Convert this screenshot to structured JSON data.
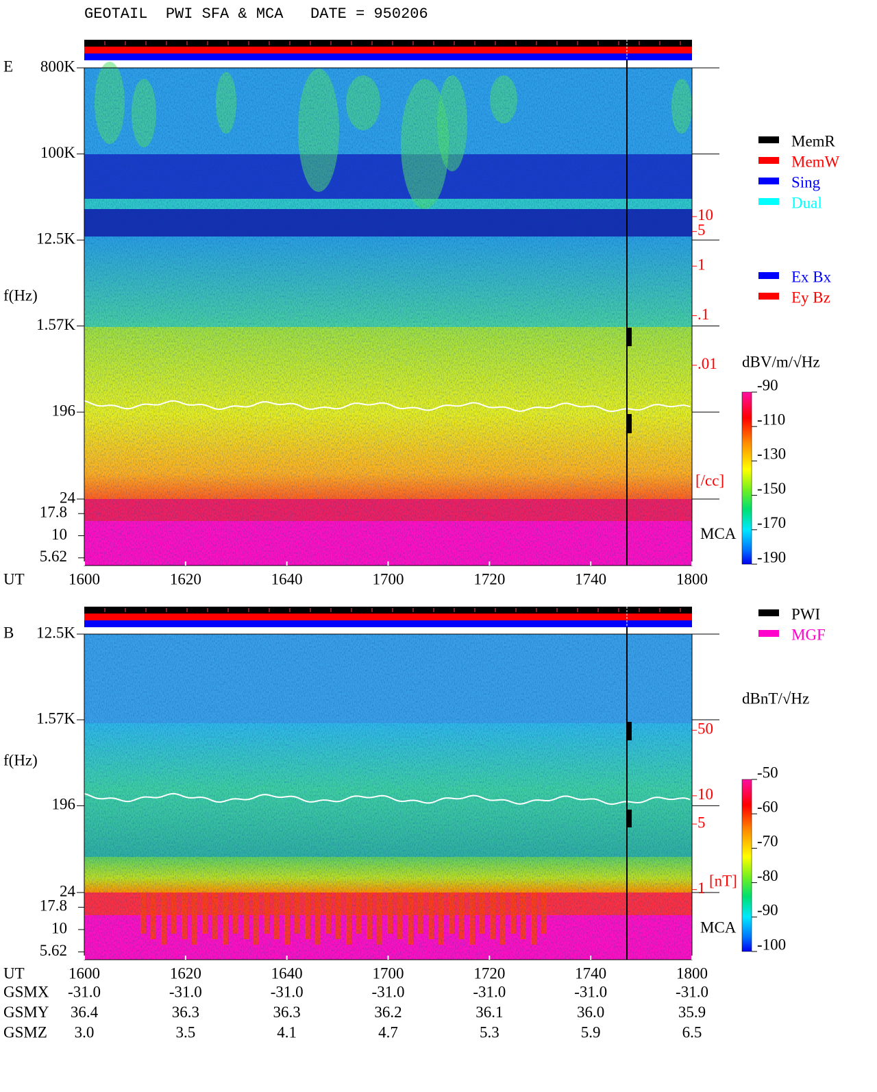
{
  "chart_data": [
    {
      "type": "spectrogram",
      "title": "GEOTAIL  PWI SFA & MCA   DATE = 950206",
      "panel": "E",
      "ylabel": "f(Hz)",
      "xlabel": "UT",
      "yscale": "log",
      "categories": [
        "1600",
        "1620",
        "1640",
        "1700",
        "1720",
        "1740",
        "1800"
      ],
      "ylim": [
        24,
        800000
      ],
      "yticks": [
        {
          "value": 800000,
          "label": "800K"
        },
        {
          "value": 100000,
          "label": "100K"
        },
        {
          "value": 12500,
          "label": "12.5K"
        },
        {
          "value": 1570,
          "label": "1.57K"
        },
        196,
        24
      ],
      "mca_label": "MCA",
      "mca_ylim": [
        4.6,
        26
      ],
      "mca_yticks": [
        17.8,
        10,
        5.62
      ],
      "y2label": "[/cc]",
      "y2color": "#ff0000",
      "y2lim": [
        2e-05,
        10000
      ],
      "y2ticks": [
        10,
        5,
        1,
        {
          "value": 0.1,
          "label": ".1"
        },
        {
          "value": 0.01,
          "label": ".01"
        }
      ],
      "colorbar": {
        "label": "dBV/m/√Hz",
        "lim": [
          -190,
          -90
        ],
        "ticks": [
          -90,
          -110,
          -130,
          -150,
          -170,
          -190
        ]
      },
      "status_legend": [
        {
          "name": "MemR",
          "color": "#000000"
        },
        {
          "name": "MemW",
          "color": "#ff0000"
        },
        {
          "name": "Sing",
          "color": "#0000ff"
        },
        {
          "name": "Dual",
          "color": "#00ffff"
        }
      ],
      "mode_legend": [
        {
          "name": "Ex Bx",
          "color": "#0000ff"
        },
        {
          "name": "Ey Bz",
          "color": "#ff0000"
        }
      ]
    },
    {
      "type": "spectrogram",
      "panel": "B",
      "ylabel": "f(Hz)",
      "xlabel": "UT",
      "yscale": "log",
      "categories": [
        "1600",
        "1620",
        "1640",
        "1700",
        "1720",
        "1740",
        "1800"
      ],
      "ylim": [
        24,
        12500
      ],
      "yticks": [
        {
          "value": 12500,
          "label": "12.5K"
        },
        {
          "value": 1570,
          "label": "1.57K"
        },
        196,
        24
      ],
      "mca_label": "MCA",
      "mca_ylim": [
        4.6,
        26
      ],
      "mca_yticks": [
        17.8,
        10,
        5.62
      ],
      "y2label": "[nT]",
      "y2color": "#ff0000",
      "y2lim": [
        0.93,
        530
      ],
      "y2ticks": [
        50,
        10,
        5,
        1
      ],
      "colorbar": {
        "label": "dBnT/√Hz",
        "lim": [
          -100,
          -50
        ],
        "ticks": [
          -50,
          -60,
          -70,
          -80,
          -90,
          -100
        ]
      },
      "status_legend": [
        {
          "name": "PWI",
          "color": "#000000"
        },
        {
          "name": "MGF",
          "color": "#ff00cc"
        }
      ]
    }
  ],
  "orbit": {
    "rows": [
      {
        "label": "GSMX",
        "values": [
          "-31.0",
          "-31.0",
          "-31.0",
          "-31.0",
          "-31.0",
          "-31.0",
          "-31.0"
        ]
      },
      {
        "label": "GSMY",
        "values": [
          "36.4",
          "36.3",
          "36.3",
          "36.2",
          "36.1",
          "36.0",
          "35.9"
        ]
      },
      {
        "label": "GSMZ",
        "values": [
          "3.0",
          "3.5",
          "4.1",
          "4.7",
          "5.3",
          "5.9",
          "6.5"
        ]
      }
    ]
  }
}
